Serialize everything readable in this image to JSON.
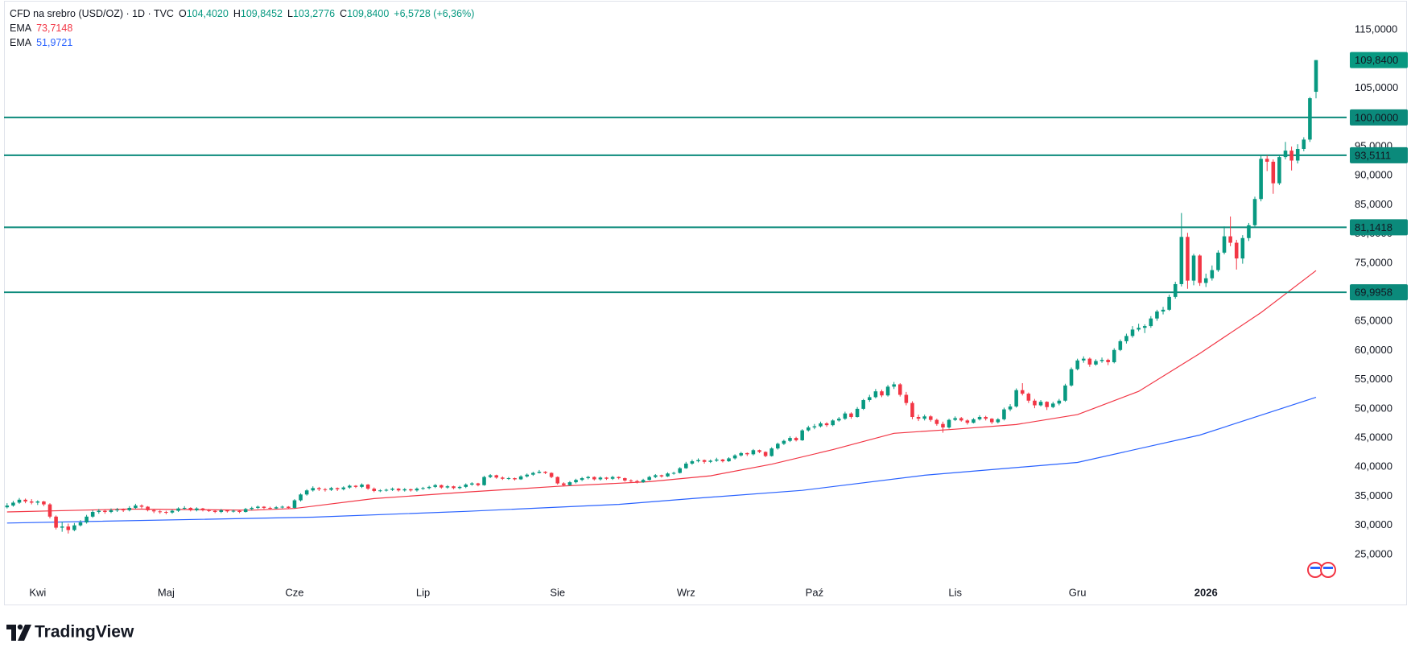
{
  "header": {
    "symbol": "CFD na srebro (USD/OZ) · 1D · TVC",
    "ohlc": [
      {
        "key": "O",
        "value": "104,4020"
      },
      {
        "key": "H",
        "value": "109,8452"
      },
      {
        "key": "L",
        "value": "103,2776"
      },
      {
        "key": "C",
        "value": "109,8400"
      }
    ],
    "change": "+6,5728 (+6,36%)"
  },
  "chart_data": {
    "type": "candlestick",
    "up_color": "#089981",
    "down_color": "#f23645",
    "grid": false,
    "ohlc": [
      [
        33.1,
        33.8,
        32.9,
        33.4
      ],
      [
        33.4,
        34.2,
        33.2,
        33.9
      ],
      [
        33.9,
        34.7,
        33.7,
        34.4
      ],
      [
        34.4,
        34.6,
        33.8,
        34.1
      ],
      [
        34.1,
        34.5,
        33.6,
        33.9
      ],
      [
        33.9,
        34.3,
        33.5,
        34.1
      ],
      [
        34.1,
        34.2,
        33.3,
        33.6
      ],
      [
        33.6,
        33.8,
        31.2,
        31.5
      ],
      [
        31.5,
        31.7,
        29.3,
        29.6
      ],
      [
        29.6,
        30.6,
        28.9,
        29.8
      ],
      [
        29.8,
        30.3,
        28.6,
        29.2
      ],
      [
        29.2,
        30.4,
        29.0,
        30.0
      ],
      [
        30.0,
        30.9,
        29.8,
        30.5
      ],
      [
        30.5,
        31.8,
        30.3,
        31.5
      ],
      [
        31.5,
        32.6,
        31.3,
        32.3
      ],
      [
        32.3,
        32.8,
        32.0,
        32.5
      ],
      [
        32.5,
        32.7,
        32.0,
        32.3
      ],
      [
        32.3,
        32.9,
        32.1,
        32.6
      ],
      [
        32.6,
        33.0,
        32.3,
        32.7
      ],
      [
        32.7,
        32.9,
        32.3,
        32.6
      ],
      [
        32.6,
        33.3,
        32.4,
        33.0
      ],
      [
        33.0,
        33.7,
        32.8,
        33.4
      ],
      [
        33.4,
        33.6,
        32.9,
        33.2
      ],
      [
        33.2,
        33.3,
        32.4,
        32.6
      ],
      [
        32.6,
        32.8,
        32.1,
        32.4
      ],
      [
        32.4,
        32.6,
        32.0,
        32.3
      ],
      [
        32.3,
        32.5,
        31.9,
        32.2
      ],
      [
        32.2,
        32.7,
        32.0,
        32.5
      ],
      [
        32.5,
        33.1,
        32.3,
        32.9
      ],
      [
        32.9,
        33.3,
        32.7,
        33.0
      ],
      [
        33.0,
        33.1,
        32.4,
        32.6
      ],
      [
        32.6,
        33.1,
        32.4,
        32.9
      ],
      [
        32.9,
        33.0,
        32.4,
        32.6
      ],
      [
        32.6,
        32.8,
        32.3,
        32.5
      ],
      [
        32.5,
        32.6,
        32.1,
        32.3
      ],
      [
        32.3,
        32.8,
        32.1,
        32.6
      ],
      [
        32.6,
        32.7,
        32.2,
        32.4
      ],
      [
        32.4,
        32.7,
        32.2,
        32.5
      ],
      [
        32.5,
        32.6,
        32.1,
        32.3
      ],
      [
        32.3,
        33.0,
        32.2,
        32.8
      ],
      [
        32.8,
        33.2,
        32.6,
        33.0
      ],
      [
        33.0,
        33.4,
        32.8,
        33.2
      ],
      [
        33.2,
        33.3,
        32.8,
        33.0
      ],
      [
        33.0,
        33.2,
        32.7,
        32.9
      ],
      [
        32.9,
        33.3,
        32.8,
        33.1
      ],
      [
        33.1,
        33.4,
        32.9,
        33.2
      ],
      [
        33.2,
        33.3,
        32.8,
        33.0
      ],
      [
        33.0,
        34.5,
        32.9,
        34.3
      ],
      [
        34.3,
        35.5,
        34.1,
        35.3
      ],
      [
        35.3,
        36.2,
        35.1,
        36.0
      ],
      [
        36.0,
        36.7,
        35.8,
        36.4
      ],
      [
        36.4,
        36.6,
        35.9,
        36.2
      ],
      [
        36.2,
        36.4,
        35.8,
        36.1
      ],
      [
        36.1,
        36.6,
        35.9,
        36.4
      ],
      [
        36.4,
        36.5,
        35.9,
        36.2
      ],
      [
        36.2,
        36.7,
        36.0,
        36.5
      ],
      [
        36.5,
        37.0,
        36.3,
        36.8
      ],
      [
        36.8,
        36.9,
        36.4,
        36.6
      ],
      [
        36.6,
        37.2,
        36.4,
        37.0
      ],
      [
        37.0,
        37.1,
        36.1,
        36.3
      ],
      [
        36.3,
        36.5,
        35.7,
        35.9
      ],
      [
        35.9,
        36.2,
        35.7,
        36.0
      ],
      [
        36.0,
        36.3,
        35.8,
        36.1
      ],
      [
        36.1,
        36.5,
        35.9,
        36.3
      ],
      [
        36.3,
        36.4,
        35.8,
        36.0
      ],
      [
        36.0,
        36.4,
        35.8,
        36.2
      ],
      [
        36.2,
        36.3,
        35.8,
        36.0
      ],
      [
        36.0,
        36.5,
        35.8,
        36.3
      ],
      [
        36.3,
        36.6,
        36.1,
        36.4
      ],
      [
        36.4,
        36.8,
        36.2,
        36.6
      ],
      [
        36.6,
        37.1,
        36.4,
        36.9
      ],
      [
        36.9,
        37.0,
        36.3,
        36.5
      ],
      [
        36.5,
        36.9,
        36.3,
        36.7
      ],
      [
        36.7,
        36.8,
        36.2,
        36.4
      ],
      [
        36.4,
        36.8,
        36.2,
        36.6
      ],
      [
        36.6,
        37.2,
        36.4,
        37.0
      ],
      [
        37.0,
        37.4,
        36.8,
        37.2
      ],
      [
        37.2,
        37.3,
        36.7,
        36.9
      ],
      [
        36.9,
        38.5,
        36.8,
        38.3
      ],
      [
        38.3,
        38.8,
        38.1,
        38.6
      ],
      [
        38.6,
        38.7,
        38.0,
        38.2
      ],
      [
        38.2,
        38.4,
        37.8,
        38.0
      ],
      [
        38.0,
        38.3,
        37.8,
        38.1
      ],
      [
        38.1,
        38.2,
        37.7,
        37.9
      ],
      [
        37.9,
        38.6,
        37.8,
        38.4
      ],
      [
        38.4,
        38.9,
        38.2,
        38.7
      ],
      [
        38.7,
        39.2,
        38.5,
        39.0
      ],
      [
        39.0,
        39.5,
        38.9,
        39.2
      ],
      [
        39.2,
        39.3,
        38.8,
        39.0
      ],
      [
        39.0,
        39.1,
        38.1,
        38.3
      ],
      [
        38.3,
        38.4,
        37.0,
        37.2
      ],
      [
        37.2,
        37.4,
        36.7,
        36.9
      ],
      [
        36.9,
        37.6,
        36.8,
        37.4
      ],
      [
        37.4,
        38.0,
        37.2,
        37.8
      ],
      [
        37.8,
        38.3,
        37.6,
        38.1
      ],
      [
        38.1,
        38.5,
        37.9,
        38.3
      ],
      [
        38.3,
        38.4,
        37.7,
        37.9
      ],
      [
        37.9,
        38.4,
        37.7,
        38.2
      ],
      [
        38.2,
        38.3,
        37.8,
        38.0
      ],
      [
        38.0,
        38.5,
        37.8,
        38.3
      ],
      [
        38.3,
        38.4,
        37.9,
        38.1
      ],
      [
        38.1,
        38.2,
        37.5,
        37.7
      ],
      [
        37.7,
        37.9,
        37.4,
        37.6
      ],
      [
        37.6,
        37.8,
        37.2,
        37.4
      ],
      [
        37.4,
        38.0,
        37.3,
        37.8
      ],
      [
        37.8,
        38.5,
        37.7,
        38.3
      ],
      [
        38.3,
        38.8,
        38.1,
        38.6
      ],
      [
        38.6,
        38.7,
        38.2,
        38.4
      ],
      [
        38.4,
        39.1,
        38.3,
        38.9
      ],
      [
        38.9,
        39.2,
        38.7,
        39.0
      ],
      [
        39.0,
        40.0,
        38.9,
        39.8
      ],
      [
        39.8,
        40.9,
        39.7,
        40.6
      ],
      [
        40.6,
        41.3,
        40.4,
        41.0
      ],
      [
        41.0,
        41.5,
        40.8,
        41.2
      ],
      [
        41.2,
        41.3,
        40.6,
        40.9
      ],
      [
        40.9,
        41.3,
        40.7,
        41.1
      ],
      [
        41.1,
        41.6,
        40.9,
        41.3
      ],
      [
        41.3,
        41.4,
        40.8,
        41.0
      ],
      [
        41.0,
        41.7,
        40.9,
        41.5
      ],
      [
        41.5,
        42.2,
        41.3,
        42.0
      ],
      [
        42.0,
        42.6,
        41.8,
        42.4
      ],
      [
        42.4,
        42.5,
        41.9,
        42.2
      ],
      [
        42.2,
        43.1,
        42.0,
        42.9
      ],
      [
        42.9,
        43.0,
        42.4,
        42.6
      ],
      [
        42.6,
        42.7,
        41.7,
        41.9
      ],
      [
        41.9,
        43.4,
        41.8,
        43.2
      ],
      [
        43.2,
        44.2,
        43.0,
        44.0
      ],
      [
        44.0,
        44.7,
        43.8,
        44.5
      ],
      [
        44.5,
        45.3,
        44.3,
        45.0
      ],
      [
        45.0,
        45.2,
        44.4,
        44.6
      ],
      [
        44.6,
        46.5,
        44.5,
        46.3
      ],
      [
        46.3,
        47.1,
        46.1,
        46.8
      ],
      [
        46.8,
        47.4,
        46.5,
        47.0
      ],
      [
        47.0,
        47.8,
        46.8,
        47.5
      ],
      [
        47.5,
        47.7,
        46.9,
        47.2
      ],
      [
        47.2,
        48.2,
        47.0,
        48.0
      ],
      [
        48.0,
        48.6,
        47.8,
        48.3
      ],
      [
        48.3,
        49.5,
        48.1,
        49.2
      ],
      [
        49.2,
        49.4,
        48.3,
        48.6
      ],
      [
        48.6,
        50.3,
        48.5,
        50.0
      ],
      [
        50.0,
        51.7,
        49.8,
        51.5
      ],
      [
        51.5,
        52.4,
        51.2,
        52.0
      ],
      [
        52.0,
        53.4,
        51.8,
        53.0
      ],
      [
        53.0,
        53.3,
        52.0,
        52.3
      ],
      [
        52.3,
        54.1,
        52.1,
        53.8
      ],
      [
        53.8,
        54.6,
        53.4,
        54.2
      ],
      [
        54.2,
        54.4,
        52.1,
        52.4
      ],
      [
        52.4,
        52.9,
        50.6,
        51.0
      ],
      [
        51.0,
        51.3,
        48.2,
        48.6
      ],
      [
        48.6,
        49.0,
        47.9,
        48.3
      ],
      [
        48.3,
        49.0,
        48.0,
        48.7
      ],
      [
        48.7,
        48.9,
        47.8,
        48.1
      ],
      [
        48.1,
        48.3,
        47.1,
        47.4
      ],
      [
        47.4,
        47.8,
        45.9,
        46.8
      ],
      [
        46.8,
        48.3,
        46.6,
        48.1
      ],
      [
        48.1,
        48.7,
        47.9,
        48.4
      ],
      [
        48.4,
        48.6,
        47.8,
        48.0
      ],
      [
        48.0,
        48.2,
        47.3,
        47.6
      ],
      [
        47.6,
        48.4,
        47.5,
        48.2
      ],
      [
        48.2,
        48.9,
        48.0,
        48.6
      ],
      [
        48.6,
        48.8,
        48.0,
        48.3
      ],
      [
        48.3,
        48.4,
        47.4,
        47.7
      ],
      [
        47.7,
        48.4,
        47.5,
        48.2
      ],
      [
        48.2,
        50.2,
        48.0,
        49.9
      ],
      [
        49.9,
        50.8,
        49.6,
        50.4
      ],
      [
        50.4,
        53.5,
        50.2,
        53.2
      ],
      [
        53.2,
        54.4,
        52.3,
        52.6
      ],
      [
        52.6,
        52.8,
        51.0,
        51.4
      ],
      [
        51.4,
        51.7,
        50.1,
        50.6
      ],
      [
        50.6,
        51.5,
        50.4,
        51.2
      ],
      [
        51.2,
        51.3,
        49.8,
        50.3
      ],
      [
        50.3,
        51.2,
        50.1,
        50.9
      ],
      [
        50.9,
        51.7,
        50.6,
        51.4
      ],
      [
        51.4,
        54.3,
        51.2,
        54.0
      ],
      [
        54.0,
        57.1,
        53.8,
        56.8
      ],
      [
        56.8,
        58.6,
        56.6,
        58.3
      ],
      [
        58.3,
        59.0,
        57.9,
        58.6
      ],
      [
        58.6,
        58.8,
        57.2,
        57.6
      ],
      [
        57.6,
        58.5,
        57.4,
        58.2
      ],
      [
        58.2,
        58.8,
        57.9,
        58.4
      ],
      [
        58.4,
        58.6,
        57.5,
        58.0
      ],
      [
        58.0,
        60.4,
        57.8,
        60.1
      ],
      [
        60.1,
        61.9,
        59.9,
        61.6
      ],
      [
        61.6,
        62.9,
        61.2,
        62.5
      ],
      [
        62.5,
        64.2,
        62.2,
        63.6
      ],
      [
        63.6,
        64.6,
        63.3,
        63.9
      ],
      [
        63.9,
        64.5,
        63.0,
        64.2
      ],
      [
        64.2,
        65.9,
        63.9,
        65.5
      ],
      [
        65.5,
        67.0,
        65.1,
        66.7
      ],
      [
        66.7,
        67.5,
        66.2,
        67.0
      ],
      [
        67.0,
        69.6,
        66.8,
        69.2
      ],
      [
        69.2,
        71.8,
        68.9,
        71.4
      ],
      [
        71.4,
        83.6,
        71.0,
        79.5
      ],
      [
        79.5,
        80.2,
        70.6,
        72.0
      ],
      [
        72.0,
        76.6,
        71.2,
        76.3
      ],
      [
        76.3,
        76.5,
        71.1,
        71.6
      ],
      [
        71.6,
        73.2,
        70.9,
        72.4
      ],
      [
        72.4,
        74.6,
        72.0,
        73.8
      ],
      [
        73.8,
        77.2,
        73.5,
        76.8
      ],
      [
        76.8,
        81.3,
        76.5,
        79.6
      ],
      [
        79.6,
        83.0,
        77.9,
        78.5
      ],
      [
        78.5,
        79.0,
        73.9,
        75.8
      ],
      [
        75.8,
        79.8,
        74.9,
        79.3
      ],
      [
        79.3,
        81.9,
        78.8,
        81.5
      ],
      [
        81.5,
        86.4,
        81.2,
        86.0
      ],
      [
        86.0,
        93.4,
        85.6,
        92.9
      ],
      [
        92.9,
        93.5,
        90.8,
        92.4
      ],
      [
        92.4,
        92.8,
        86.9,
        88.7
      ],
      [
        88.7,
        93.5,
        88.4,
        93.2
      ],
      [
        93.2,
        95.8,
        92.8,
        94.3
      ],
      [
        94.3,
        95.0,
        90.9,
        92.6
      ],
      [
        92.6,
        95.4,
        92.1,
        94.6
      ],
      [
        94.6,
        96.6,
        94.2,
        96.2
      ],
      [
        96.2,
        103.5,
        95.8,
        103.3
      ],
      [
        104.402,
        109.8452,
        103.2776,
        109.84
      ]
    ],
    "xlim": [
      -0.5,
      219
    ],
    "xticks": [
      {
        "value": 5,
        "label": "Kwi"
      },
      {
        "value": 26,
        "label": "Maj"
      },
      {
        "value": 47,
        "label": "Cze"
      },
      {
        "value": 68,
        "label": "Lip"
      },
      {
        "value": 90,
        "label": "Sie"
      },
      {
        "value": 111,
        "label": "Wrz"
      },
      {
        "value": 132,
        "label": "Paź"
      },
      {
        "value": 155,
        "label": "Lis"
      },
      {
        "value": 175,
        "label": "Gru"
      },
      {
        "value": 196,
        "label": "2026"
      }
    ],
    "ylim": [
      20.7,
      119.6
    ],
    "yticks": [
      {
        "value": 25,
        "label": "25,0000"
      },
      {
        "value": 30,
        "label": "30,0000"
      },
      {
        "value": 35,
        "label": "35,0000"
      },
      {
        "value": 40,
        "label": "40,0000"
      },
      {
        "value": 45,
        "label": "45,0000"
      },
      {
        "value": 50,
        "label": "50,0000"
      },
      {
        "value": 55,
        "label": "55,0000"
      },
      {
        "value": 60,
        "label": "60,0000"
      },
      {
        "value": 65,
        "label": "65,0000"
      },
      {
        "value": 75,
        "label": "75,0000"
      },
      {
        "value": 80,
        "label": "80,0000"
      },
      {
        "value": 85,
        "label": "85,0000"
      },
      {
        "value": 90,
        "label": "90,0000"
      },
      {
        "value": 95,
        "label": "95,0000"
      },
      {
        "value": 105,
        "label": "105,0000"
      },
      {
        "value": 115,
        "label": "115,0000"
      }
    ],
    "studies": [
      {
        "name": "EMA",
        "color": "#f23645",
        "last": {
          "value": 73.7148,
          "label": "73,7148"
        },
        "x": [
          0,
          20,
          40,
          47,
          60,
          75,
          90,
          105,
          115,
          125,
          135,
          145,
          155,
          165,
          175,
          185,
          195,
          205,
          214
        ],
        "values": [
          32.3,
          32.8,
          32.6,
          32.9,
          34.6,
          35.7,
          36.7,
          37.5,
          38.5,
          40.5,
          43.0,
          45.8,
          46.5,
          47.3,
          49.0,
          53.0,
          59.5,
          66.5,
          73.7148
        ]
      },
      {
        "name": "EMA",
        "color": "#2962ff",
        "last": {
          "value": 51.9721,
          "label": "51,9721"
        },
        "x": [
          0,
          50,
          75,
          100,
          112,
          130,
          150,
          175,
          195,
          214
        ],
        "values": [
          30.4,
          31.4,
          32.4,
          33.6,
          34.6,
          36.0,
          38.6,
          40.8,
          45.5,
          51.9721
        ]
      }
    ],
    "level_color": "#0b8a7b",
    "levels": [
      {
        "value": 100,
        "label": "100,0000"
      },
      {
        "value": 93.5111,
        "label": "93,5111"
      },
      {
        "value": 81.1418,
        "label": "81,1418"
      },
      {
        "value": 69.9958,
        "label": "69,9958"
      }
    ],
    "last_price": {
      "value": 109.84,
      "label": "109,8400"
    }
  },
  "branding": "TradingView"
}
